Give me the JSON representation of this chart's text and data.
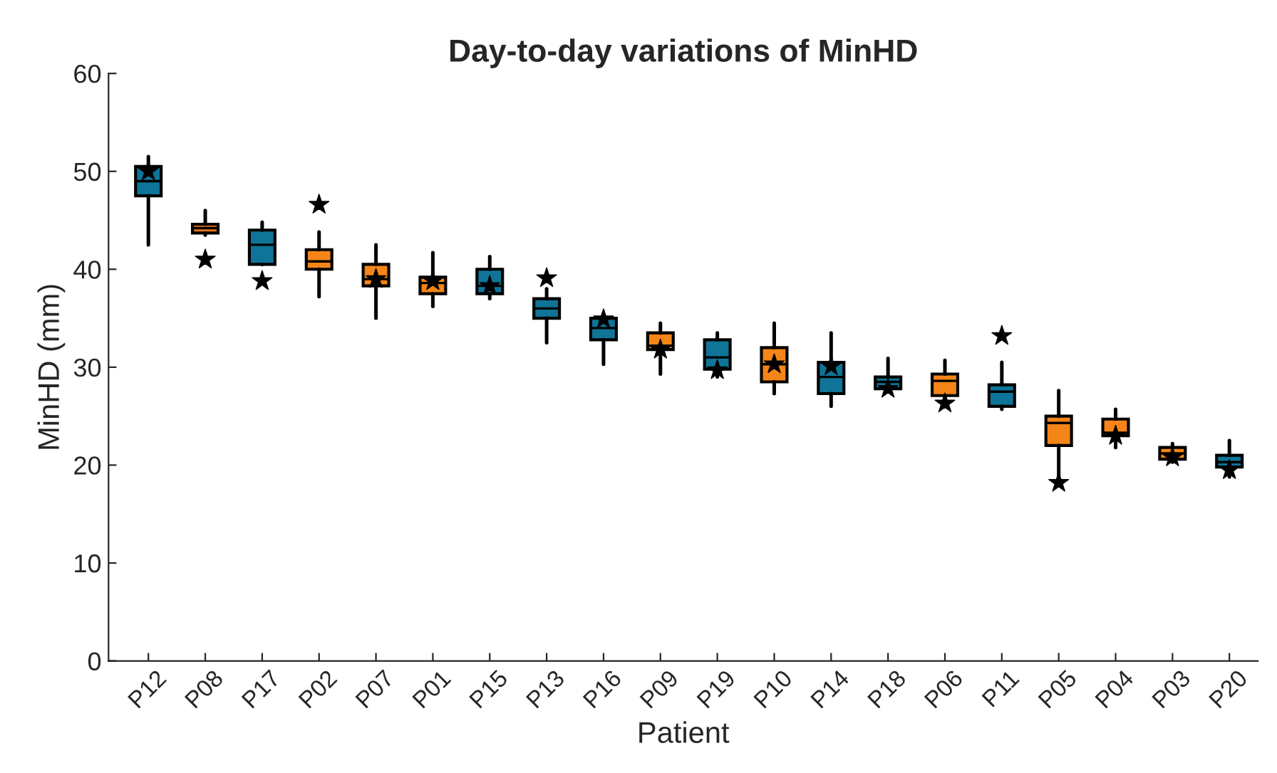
{
  "chart_data": {
    "type": "box",
    "title": "Day-to-day variations of MinHD",
    "xlabel": "Patient",
    "ylabel": "MinHD (mm)",
    "categories": [
      "P12",
      "P08",
      "P17",
      "P02",
      "P07",
      "P01",
      "P15",
      "P13",
      "P16",
      "P09",
      "P19",
      "P10",
      "P14",
      "P18",
      "P06",
      "P11",
      "P05",
      "P04",
      "P03",
      "P20"
    ],
    "colors": [
      "#0f7497",
      "#e8731c",
      "#0f7497",
      "#f58518",
      "#f58518",
      "#f58518",
      "#0f7497",
      "#0f7497",
      "#0f7497",
      "#f58518",
      "#0f7497",
      "#f58518",
      "#0f7497",
      "#0f7497",
      "#f58518",
      "#0f7497",
      "#f58518",
      "#f58518",
      "#f58518",
      "#0f7497"
    ],
    "boxes": [
      {
        "low": 42.5,
        "q1": 47.5,
        "median": 49,
        "q3": 50.5,
        "high": 51.5
      },
      {
        "low": 43.5,
        "q1": 43.7,
        "median": 44.2,
        "q3": 44.6,
        "high": 46
      },
      {
        "low": 40.5,
        "q1": 40.5,
        "median": 42.5,
        "q3": 44,
        "high": 44.8
      },
      {
        "low": 37.2,
        "q1": 40,
        "median": 40.8,
        "q3": 42,
        "high": 43.8
      },
      {
        "low": 35,
        "q1": 38.3,
        "median": 39,
        "q3": 40.5,
        "high": 42.5
      },
      {
        "low": 36.2,
        "q1": 37.5,
        "median": 38.6,
        "q3": 39.2,
        "high": 41.7
      },
      {
        "low": 37,
        "q1": 37.5,
        "median": 38.3,
        "q3": 40,
        "high": 41.3
      },
      {
        "low": 32.5,
        "q1": 35,
        "median": 36,
        "q3": 37,
        "high": 38
      },
      {
        "low": 30.3,
        "q1": 32.8,
        "median": 34,
        "q3": 35,
        "high": 35.2
      },
      {
        "low": 29.3,
        "q1": 31.8,
        "median": 32.2,
        "q3": 33.5,
        "high": 34.5
      },
      {
        "low": 29,
        "q1": 29.8,
        "median": 31,
        "q3": 32.8,
        "high": 33.5
      },
      {
        "low": 27.3,
        "q1": 28.5,
        "median": 30.3,
        "q3": 32,
        "high": 34.5
      },
      {
        "low": 26,
        "q1": 27.3,
        "median": 29,
        "q3": 30.5,
        "high": 33.5
      },
      {
        "low": 27.5,
        "q1": 27.8,
        "median": 28.5,
        "q3": 29,
        "high": 30.9
      },
      {
        "low": 26.2,
        "q1": 27.1,
        "median": 28.6,
        "q3": 29.3,
        "high": 30.7
      },
      {
        "low": 25.7,
        "q1": 26,
        "median": 27.5,
        "q3": 28.2,
        "high": 30.5
      },
      {
        "low": 18.5,
        "q1": 22,
        "median": 24.3,
        "q3": 25,
        "high": 27.6
      },
      {
        "low": 21.8,
        "q1": 23,
        "median": 23.3,
        "q3": 24.7,
        "high": 25.7
      },
      {
        "low": 20.3,
        "q1": 20.6,
        "median": 21.2,
        "q3": 21.8,
        "high": 22.2
      },
      {
        "low": 18.8,
        "q1": 19.8,
        "median": 20.3,
        "q3": 21,
        "high": 22.5
      }
    ],
    "series": [
      {
        "type": "scatter",
        "color": "#000000",
        "marker": "star",
        "x": [
          "P12",
          "P08",
          "P17",
          "P02",
          "P07",
          "P01",
          "P15",
          "P13",
          "P16",
          "P09",
          "P19",
          "P10",
          "P14",
          "P18",
          "P06",
          "P11",
          "P05",
          "P04",
          "P03",
          "P20"
        ],
        "values": [
          50,
          41,
          38.8,
          46.6,
          39,
          38.8,
          38.3,
          39.1,
          34.9,
          31.8,
          29.7,
          30.3,
          30.1,
          27.8,
          26.3,
          33.2,
          18.2,
          23,
          20.8,
          19.5
        ]
      }
    ],
    "ylim": [
      0,
      60
    ],
    "yticks": [
      0,
      10,
      20,
      30,
      40,
      50,
      60
    ],
    "grid": false,
    "legend": false
  }
}
